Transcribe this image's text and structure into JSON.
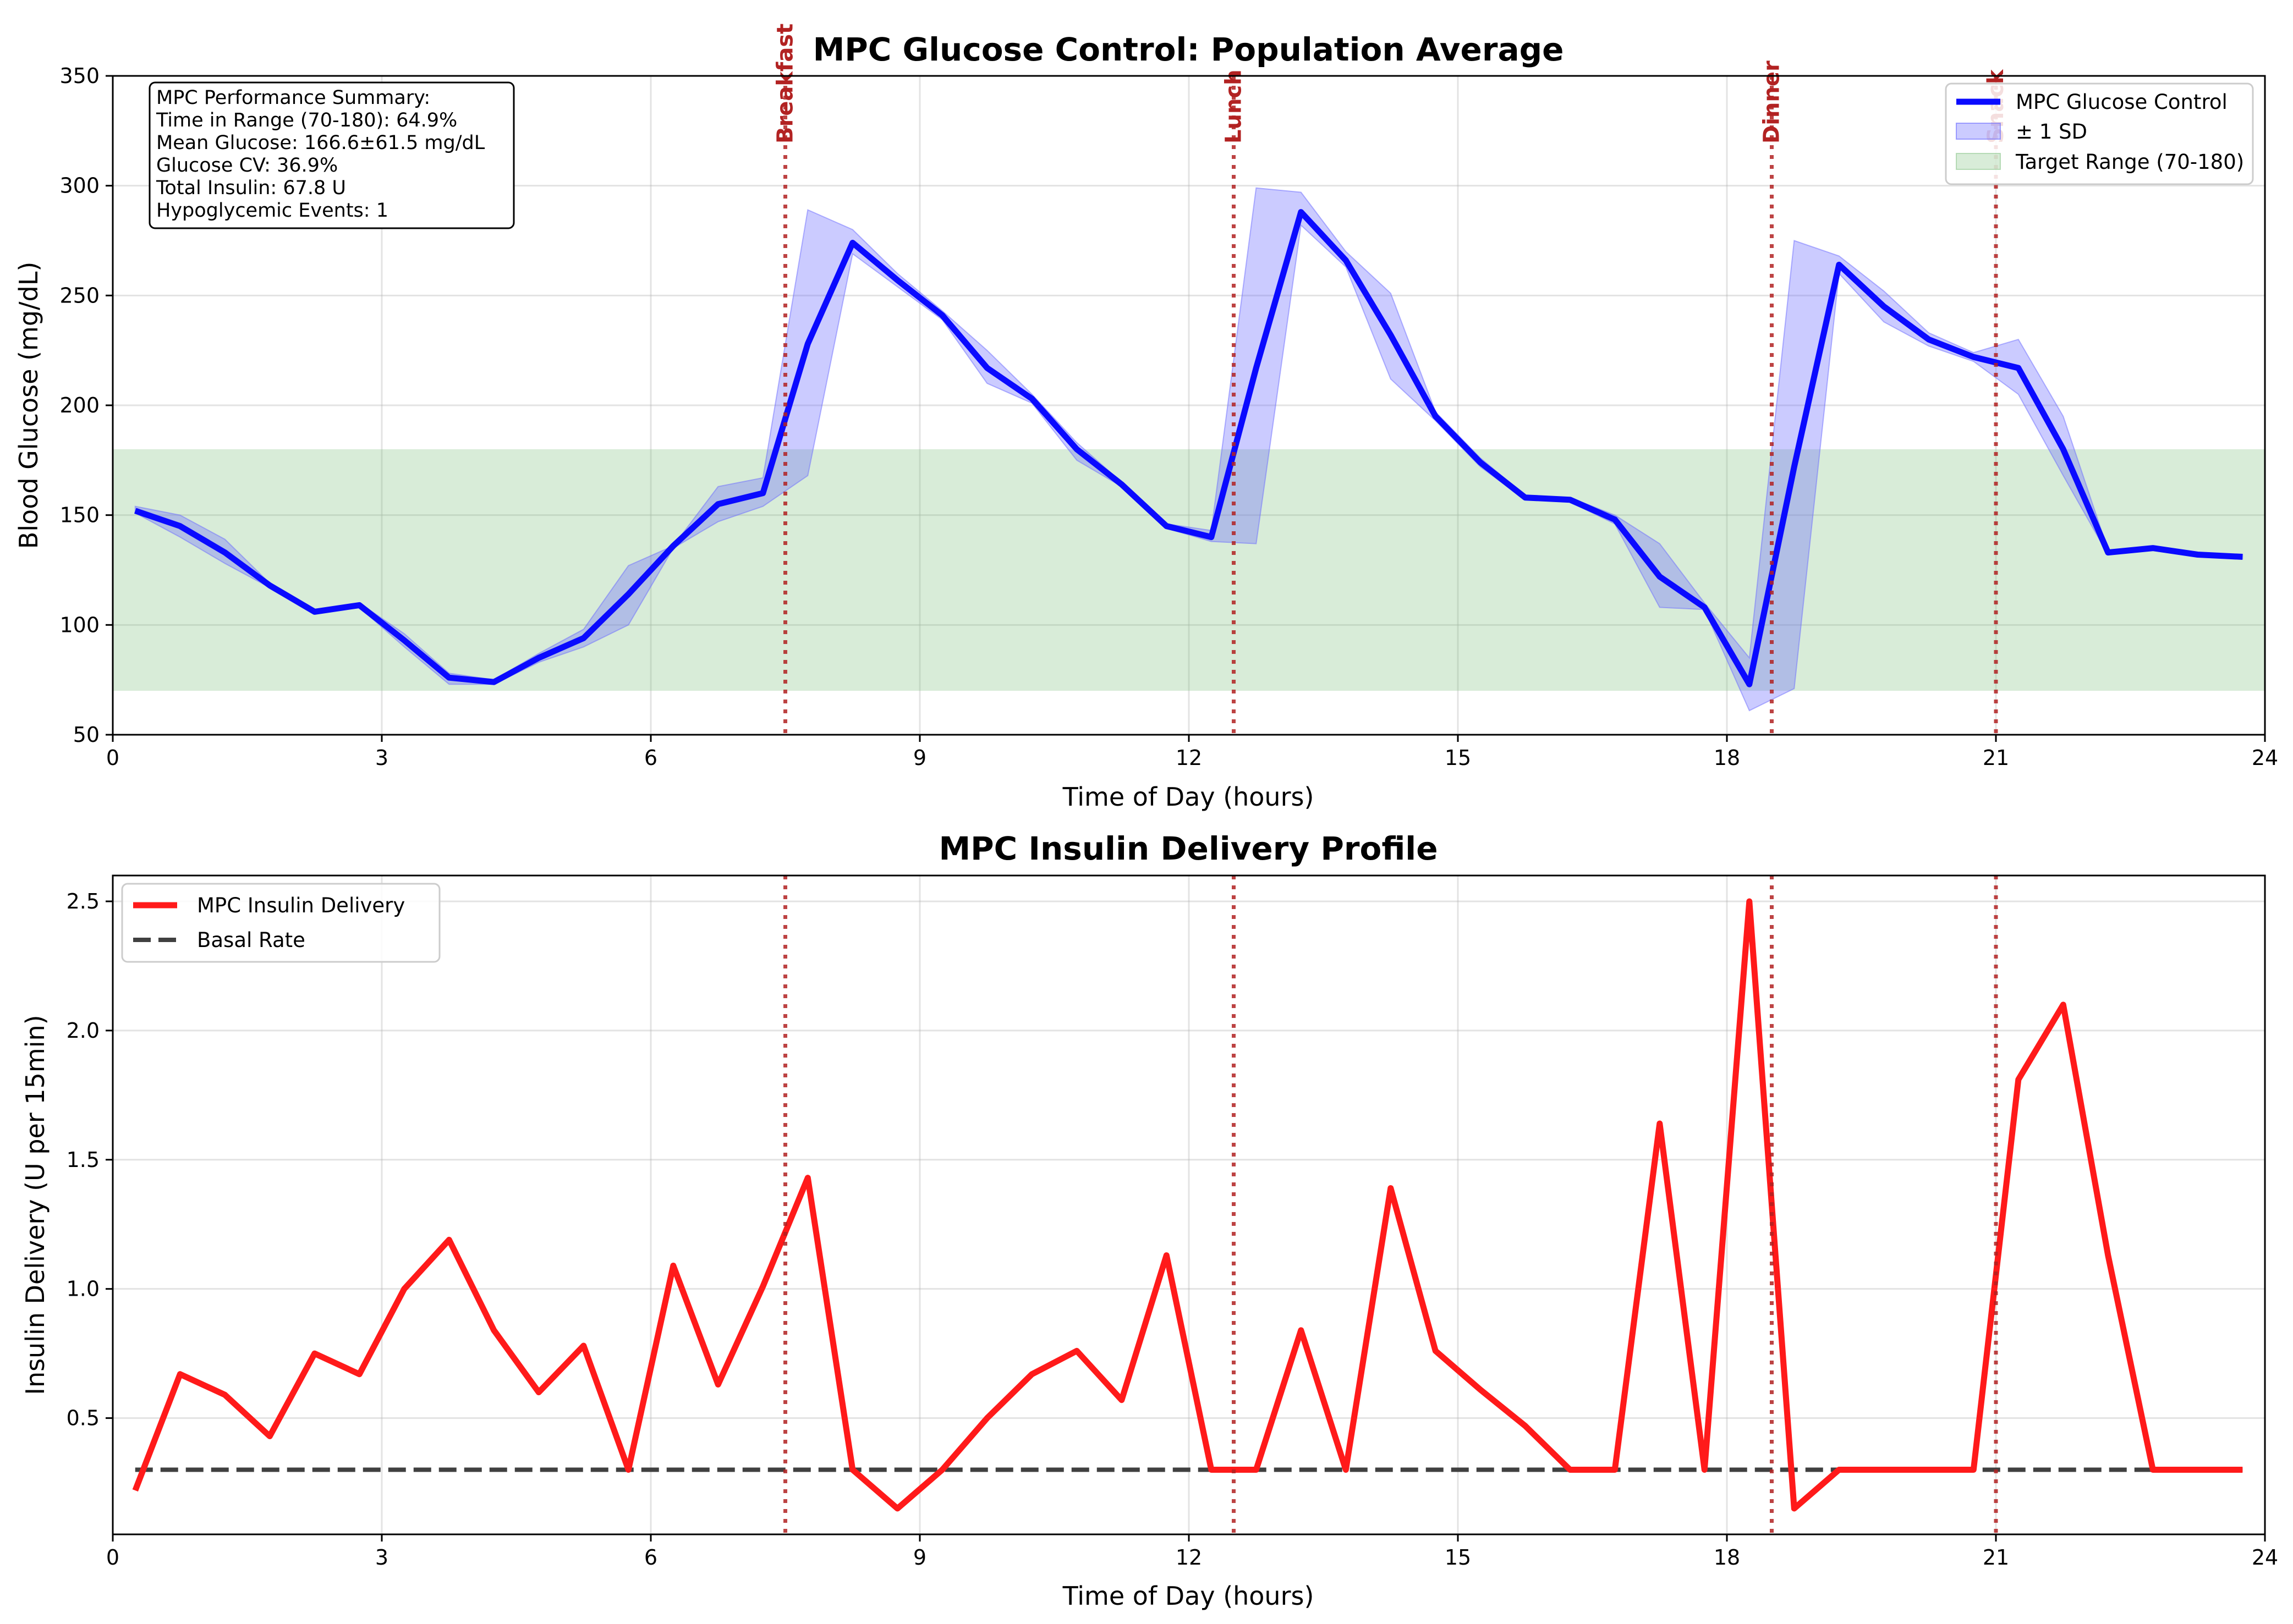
{
  "chart_data": [
    {
      "type": "line",
      "title": "MPC Glucose Control: Population Average",
      "xlabel": "Time of Day (hours)",
      "ylabel": "Blood Glucose (mg/dL)",
      "xlim": [
        0,
        24
      ],
      "ylim": [
        50,
        350
      ],
      "xticks": [
        0,
        3,
        6,
        9,
        12,
        15,
        18,
        21,
        24
      ],
      "yticks": [
        50,
        100,
        150,
        200,
        250,
        300,
        350
      ],
      "grid": true,
      "legend_position": "top-right",
      "target_range": {
        "low": 70,
        "high": 180,
        "label": "Target Range (70-180)"
      },
      "series": [
        {
          "name": "MPC Glucose Control",
          "color": "#0a0aff",
          "x": [
            0.25,
            0.75,
            1.25,
            1.75,
            2.25,
            2.75,
            3.25,
            3.75,
            4.25,
            4.75,
            5.25,
            5.75,
            6.25,
            6.75,
            7.25,
            7.75,
            8.25,
            8.75,
            9.25,
            9.75,
            10.25,
            10.75,
            11.25,
            11.75,
            12.25,
            12.75,
            13.25,
            13.75,
            14.25,
            14.75,
            15.25,
            15.75,
            16.25,
            16.75,
            17.25,
            17.75,
            18.25,
            18.75,
            19.25,
            19.75,
            20.25,
            20.75,
            21.25,
            21.75,
            22.25,
            22.75,
            23.25,
            23.75
          ],
          "y": [
            152,
            145,
            133,
            118,
            106,
            109,
            93,
            76,
            74,
            85,
            94,
            114,
            136,
            155,
            160,
            228,
            274,
            257,
            241,
            217,
            203,
            180,
            164,
            145,
            140,
            217,
            288,
            266,
            232,
            195,
            174,
            158,
            157,
            148,
            122,
            108,
            73,
            172,
            264,
            245,
            230,
            222,
            217,
            180,
            133,
            135,
            132,
            131
          ]
        },
        {
          "name": "± 1 SD",
          "color": "#6b6bff",
          "x": [
            0.25,
            0.75,
            1.25,
            1.75,
            2.25,
            2.75,
            3.25,
            3.75,
            4.25,
            4.75,
            5.25,
            5.75,
            6.25,
            6.75,
            7.25,
            7.75,
            8.25,
            8.75,
            9.25,
            9.75,
            10.25,
            10.75,
            11.25,
            11.75,
            12.25,
            12.75,
            13.25,
            13.75,
            14.25,
            14.75,
            15.25,
            15.75,
            16.25,
            16.75,
            17.25,
            17.75,
            18.25,
            18.75,
            19.25,
            19.75,
            20.25,
            20.75,
            21.25,
            21.75,
            22.25,
            22.75,
            23.25,
            23.75
          ],
          "upper": [
            154,
            150,
            139,
            119,
            107,
            110,
            96,
            78,
            75,
            87,
            98,
            127,
            136,
            163,
            167,
            289,
            280,
            260,
            243,
            225,
            205,
            183,
            165,
            146,
            143,
            299,
            297,
            270,
            251,
            197,
            176,
            159,
            158,
            150,
            137,
            110,
            85,
            275,
            268,
            252,
            233,
            224,
            230,
            195,
            134,
            136,
            133,
            132
          ],
          "lower": [
            151,
            140,
            128,
            117,
            105,
            108,
            90,
            73,
            73,
            83,
            90,
            100,
            135,
            147,
            154,
            168,
            269,
            254,
            239,
            210,
            201,
            175,
            163,
            144,
            138,
            137,
            282,
            263,
            212,
            193,
            172,
            157,
            156,
            146,
            108,
            107,
            61,
            71,
            260,
            238,
            227,
            220,
            205,
            168,
            132,
            134,
            131,
            130
          ]
        }
      ],
      "stats_box": [
        "MPC Performance Summary:",
        "Time in Range (70-180): 64.9%",
        "Mean Glucose: 166.6±61.5 mg/dL",
        "Glucose CV: 36.9%",
        "Total Insulin: 67.8 U",
        "Hypoglycemic Events: 1"
      ]
    },
    {
      "type": "line",
      "title": "MPC Insulin Delivery Profile",
      "xlabel": "Time of Day (hours)",
      "ylabel": "Insulin Delivery (U per 15min)",
      "xlim": [
        0,
        24
      ],
      "ylim": [
        0.05,
        2.6
      ],
      "xticks": [
        0,
        3,
        6,
        9,
        12,
        15,
        18,
        21,
        24
      ],
      "yticks": [
        0.5,
        1.0,
        1.5,
        2.0,
        2.5
      ],
      "grid": true,
      "legend_position": "top-left",
      "series": [
        {
          "name": "MPC Insulin Delivery",
          "color": "#ff1a1a",
          "x": [
            0.25,
            0.75,
            1.25,
            1.75,
            2.25,
            2.75,
            3.25,
            3.75,
            4.25,
            4.75,
            5.25,
            5.75,
            6.25,
            6.75,
            7.25,
            7.75,
            8.25,
            8.75,
            9.25,
            9.75,
            10.25,
            10.75,
            11.25,
            11.75,
            12.25,
            12.75,
            13.25,
            13.75,
            14.25,
            14.75,
            15.25,
            15.75,
            16.25,
            16.75,
            17.25,
            17.75,
            18.25,
            18.75,
            19.25,
            19.75,
            20.25,
            20.75,
            21.25,
            21.75,
            22.25,
            22.75,
            23.25,
            23.75
          ],
          "y": [
            0.22,
            0.67,
            0.59,
            0.43,
            0.75,
            0.67,
            1.0,
            1.19,
            0.84,
            0.6,
            0.78,
            0.3,
            1.09,
            0.63,
            1.01,
            1.43,
            0.3,
            0.15,
            0.3,
            0.5,
            0.67,
            0.76,
            0.57,
            1.13,
            0.3,
            0.3,
            0.84,
            0.3,
            1.39,
            0.76,
            0.61,
            0.47,
            0.3,
            0.3,
            1.64,
            0.3,
            2.5,
            0.15,
            0.3,
            0.3,
            0.3,
            0.3,
            1.81,
            2.1,
            1.13,
            0.3,
            0.3,
            0.3
          ]
        },
        {
          "name": "Basal Rate",
          "color": "#404040",
          "style": "dashed",
          "y": 0.3
        }
      ]
    }
  ],
  "meal_markers": [
    {
      "label": "Breakfast",
      "hour": 7.5
    },
    {
      "label": "Lunch",
      "hour": 12.5
    },
    {
      "label": "Dinner",
      "hour": 18.5
    },
    {
      "label": "Snack",
      "hour": 21.0
    }
  ],
  "colors": {
    "glucose_line": "#0a0aff",
    "sd_band": "#6b6bff",
    "target_band": "#7fbf7f",
    "insulin_line": "#ff1a1a",
    "basal_line": "#404040",
    "meal_marker": "#b22222"
  }
}
